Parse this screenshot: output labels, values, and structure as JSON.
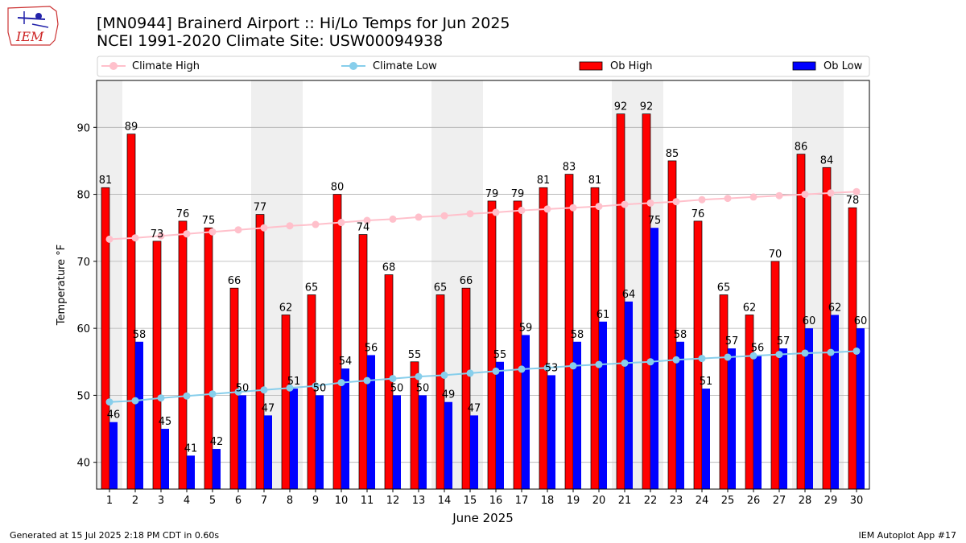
{
  "header": {
    "title_line1": "[MN0944] Brainerd Airport :: Hi/Lo Temps for Jun 2025",
    "title_line2": "NCEI 1991-2020 Climate Site: USW00094938",
    "logo_text": "IEM"
  },
  "footer": {
    "generated": "Generated at 15 Jul 2025 2:18 PM CDT in 0.60s",
    "app": "IEM Autoplot App #17"
  },
  "colors": {
    "ob_high": "#ff0000",
    "ob_low": "#0000ff",
    "climate_high": "#ffc0cb",
    "climate_low": "#87ceeb",
    "weekend_band": "#efefef",
    "grid": "#b0b0b0"
  },
  "chart_data": {
    "type": "bar",
    "xlabel": "June 2025",
    "ylabel": "Temperature °F",
    "ylim": [
      36,
      97
    ],
    "yticks": [
      40,
      50,
      60,
      70,
      80,
      90
    ],
    "grid": "horizontal",
    "legend_position": "top",
    "categories": [
      "1",
      "2",
      "3",
      "4",
      "5",
      "6",
      "7",
      "8",
      "9",
      "10",
      "11",
      "12",
      "13",
      "14",
      "15",
      "16",
      "17",
      "18",
      "19",
      "20",
      "21",
      "22",
      "23",
      "24",
      "25",
      "26",
      "27",
      "28",
      "29",
      "30"
    ],
    "shaded_days": [
      1,
      7,
      8,
      14,
      15,
      21,
      22,
      28,
      29
    ],
    "series": [
      {
        "name": "Ob High",
        "kind": "bar",
        "values": [
          81,
          89,
          73,
          76,
          75,
          66,
          77,
          62,
          65,
          80,
          74,
          68,
          55,
          65,
          66,
          79,
          79,
          81,
          83,
          81,
          92,
          92,
          85,
          76,
          65,
          62,
          70,
          86,
          84,
          78
        ]
      },
      {
        "name": "Ob Low",
        "kind": "bar",
        "values": [
          46,
          58,
          45,
          41,
          42,
          50,
          47,
          51,
          50,
          54,
          56,
          50,
          50,
          49,
          47,
          55,
          59,
          53,
          58,
          61,
          64,
          75,
          58,
          51,
          57,
          56,
          57,
          60,
          62,
          60
        ]
      },
      {
        "name": "Climate High",
        "kind": "line",
        "values": [
          73.3,
          73.5,
          73.8,
          74.1,
          74.4,
          74.7,
          75.0,
          75.3,
          75.5,
          75.8,
          76.1,
          76.3,
          76.6,
          76.8,
          77.1,
          77.3,
          77.6,
          77.8,
          78.0,
          78.2,
          78.5,
          78.7,
          78.9,
          79.2,
          79.4,
          79.6,
          79.8,
          80.0,
          80.2,
          80.4
        ]
      },
      {
        "name": "Climate Low",
        "kind": "line",
        "values": [
          49.0,
          49.2,
          49.6,
          49.9,
          50.2,
          50.5,
          50.8,
          51.1,
          51.4,
          51.9,
          52.2,
          52.5,
          52.8,
          53.0,
          53.3,
          53.6,
          53.9,
          54.1,
          54.4,
          54.6,
          54.8,
          55.0,
          55.3,
          55.5,
          55.7,
          55.9,
          56.1,
          56.3,
          56.4,
          56.6
        ]
      }
    ]
  }
}
